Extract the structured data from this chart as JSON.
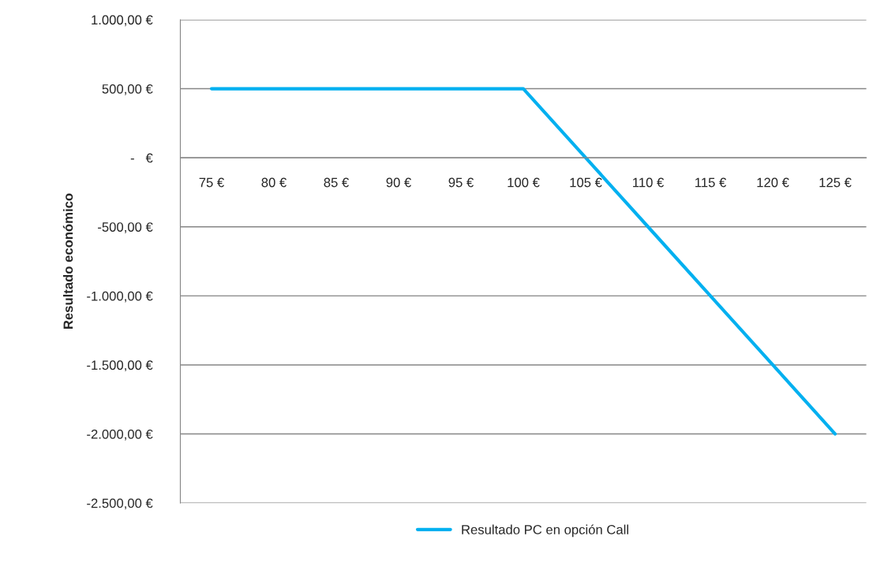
{
  "chart_data": {
    "type": "line",
    "ylabel": "Resultado económico",
    "categories": [
      "75 €",
      "80 €",
      "85 €",
      "90 €",
      "95 €",
      "100 €",
      "105 €",
      "110 €",
      "115 €",
      "120 €",
      "125 €"
    ],
    "series": [
      {
        "name": "Resultado PC en opción Call",
        "color": "#00b0f0",
        "values": [
          500,
          500,
          500,
          500,
          500,
          500,
          0,
          -500,
          -1000,
          -1500,
          -2000
        ]
      }
    ],
    "ylim": [
      -2500,
      1000
    ],
    "yticks": [
      {
        "value": -2500,
        "label": "-2.500,00 €"
      },
      {
        "value": -2000,
        "label": "-2.000,00 €"
      },
      {
        "value": -1500,
        "label": "-1.500,00 €"
      },
      {
        "value": -1000,
        "label": "-1.000,00 €"
      },
      {
        "value": -500,
        "label": "-500,00 €"
      },
      {
        "value": 0,
        "label": "-   €"
      },
      {
        "value": 500,
        "label": "500,00 €"
      },
      {
        "value": 1000,
        "label": "1.000,00 €"
      }
    ],
    "grid": "y",
    "legend": "bottom",
    "marker": "none",
    "line_style": "solid"
  }
}
